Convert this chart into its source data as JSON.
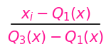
{
  "numerator": "$x_i - Q_1(x)$",
  "denominator": "$Q_3(x) - Q_1(x)$",
  "fraction_color": "#FF1493",
  "bar_color": "#000000",
  "background_color": "#ffffff",
  "fontsize": 15,
  "fig_width": 1.56,
  "fig_height": 0.69
}
